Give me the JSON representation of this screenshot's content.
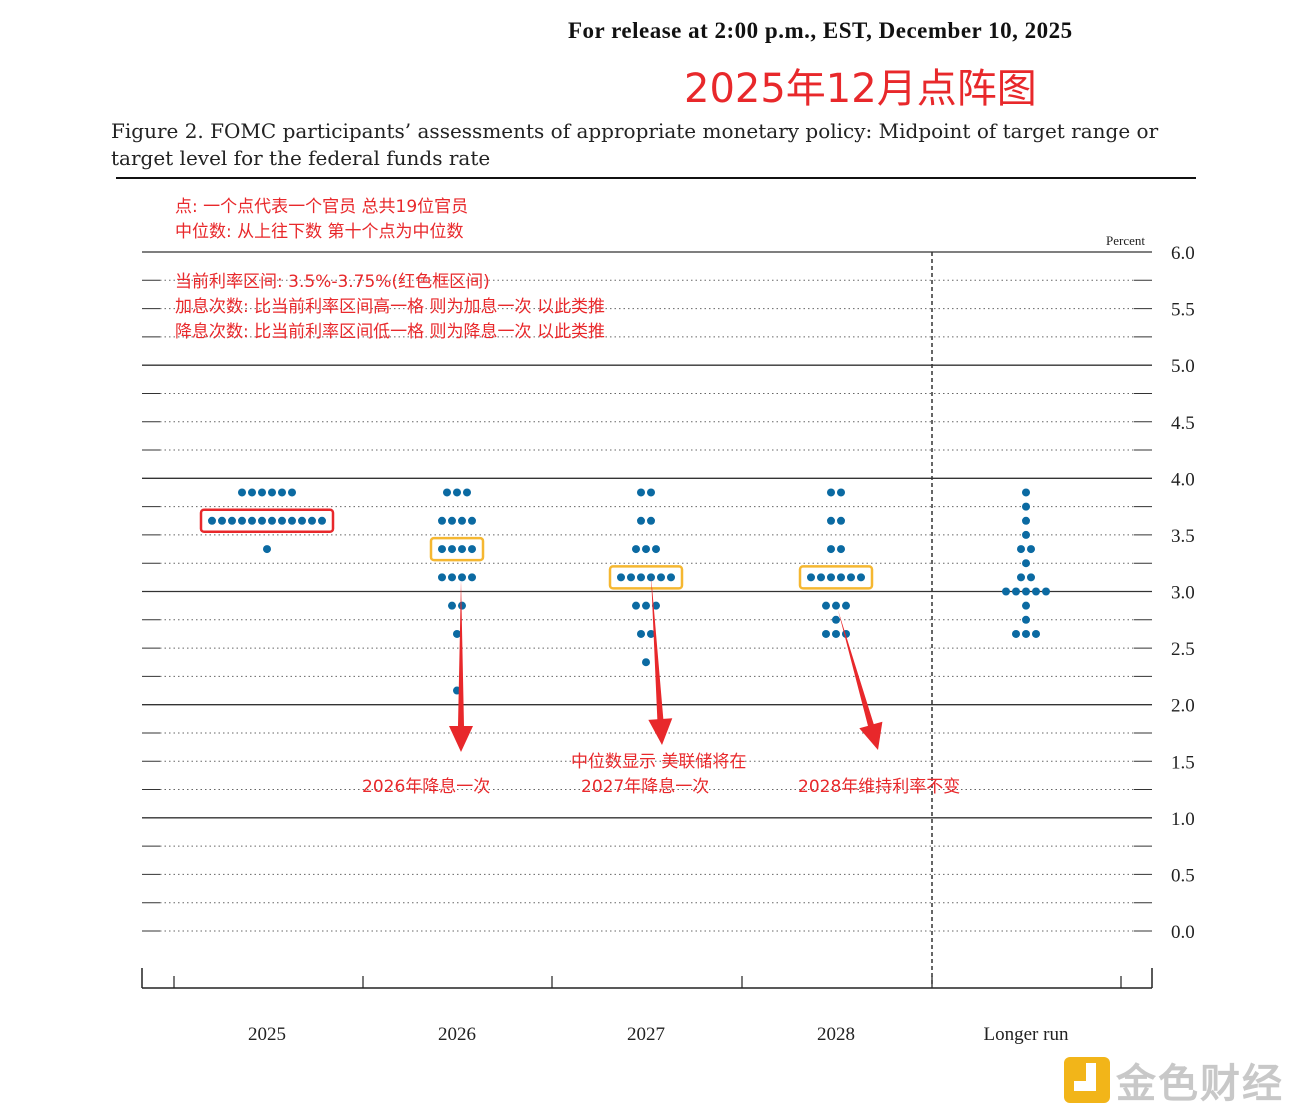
{
  "header": {
    "release": "For release at 2:00 p.m., EST, December 10, 2025",
    "cn_title": "2025年12月点阵图",
    "figure_title": "Figure 2. FOMC participants’ assessments of appropriate monetary policy: Midpoint of target range or target level for the federal funds rate"
  },
  "notes": {
    "dot": "点: 一个点代表一个官员 总共19位官员",
    "median": "中位数: 从上往下数 第十个点为中位数",
    "current": "当前利率区间: 3.5%-3.75%(红色框区间)",
    "hikes": "加息次数: 比当前利率区间高一格 则为加息一次 以此类推",
    "cuts": "降息次数: 比当前利率区间低一格 则为降息一次 以此类推",
    "a2026": "2026年降息一次",
    "a2027_line1": "中位数显示  美联储将在",
    "a2027_line2": "2027年降息一次",
    "a2028": "2028年维持利率不变"
  },
  "logo": {
    "text": "金色财经"
  },
  "colors": {
    "dot": "#0b6aa2",
    "annotation": "#e8282b",
    "highlight": "#f5b731"
  },
  "chart_data": {
    "type": "scatter",
    "unit_label": "Percent",
    "ylim": [
      0,
      6
    ],
    "y_ticks": [
      "6.0",
      "5.5",
      "5.0",
      "4.5",
      "4.0",
      "3.5",
      "3.0",
      "2.5",
      "2.0",
      "1.5",
      "1.0",
      "0.5",
      "0.0"
    ],
    "categories": [
      "2025",
      "2026",
      "2027",
      "2028",
      "Longer run"
    ],
    "series": [
      {
        "category": "2025",
        "points": [
          {
            "y": 3.875,
            "n": 6
          },
          {
            "y": 3.625,
            "n": 12
          },
          {
            "y": 3.375,
            "n": 1
          }
        ]
      },
      {
        "category": "2026",
        "points": [
          {
            "y": 3.875,
            "n": 3
          },
          {
            "y": 3.625,
            "n": 4
          },
          {
            "y": 3.375,
            "n": 4
          },
          {
            "y": 3.125,
            "n": 4
          },
          {
            "y": 2.875,
            "n": 2
          },
          {
            "y": 2.625,
            "n": 1
          },
          {
            "y": 2.125,
            "n": 1
          }
        ]
      },
      {
        "category": "2027",
        "points": [
          {
            "y": 3.875,
            "n": 2
          },
          {
            "y": 3.625,
            "n": 2
          },
          {
            "y": 3.375,
            "n": 3
          },
          {
            "y": 3.125,
            "n": 6
          },
          {
            "y": 2.875,
            "n": 3
          },
          {
            "y": 2.625,
            "n": 2
          },
          {
            "y": 2.375,
            "n": 1
          }
        ]
      },
      {
        "category": "2028",
        "points": [
          {
            "y": 3.875,
            "n": 2
          },
          {
            "y": 3.625,
            "n": 2
          },
          {
            "y": 3.375,
            "n": 2
          },
          {
            "y": 3.125,
            "n": 6
          },
          {
            "y": 2.875,
            "n": 3
          },
          {
            "y": 2.75,
            "n": 1
          },
          {
            "y": 2.625,
            "n": 3
          }
        ]
      },
      {
        "category": "Longer run",
        "points": [
          {
            "y": 3.875,
            "n": 1
          },
          {
            "y": 3.75,
            "n": 1
          },
          {
            "y": 3.625,
            "n": 1
          },
          {
            "y": 3.5,
            "n": 1
          },
          {
            "y": 3.375,
            "n": 2
          },
          {
            "y": 3.25,
            "n": 1
          },
          {
            "y": 3.125,
            "n": 2
          },
          {
            "y": 3.0,
            "n": 5
          },
          {
            "y": 2.875,
            "n": 1
          },
          {
            "y": 2.75,
            "n": 1
          },
          {
            "y": 2.625,
            "n": 3
          }
        ]
      }
    ],
    "highlights": [
      {
        "category": "2025",
        "y": 3.625,
        "style": "current-range"
      },
      {
        "category": "2026",
        "y": 3.375,
        "style": "median"
      },
      {
        "category": "2027",
        "y": 3.125,
        "style": "median"
      },
      {
        "category": "2028",
        "y": 3.125,
        "style": "median"
      }
    ],
    "grid": true
  }
}
